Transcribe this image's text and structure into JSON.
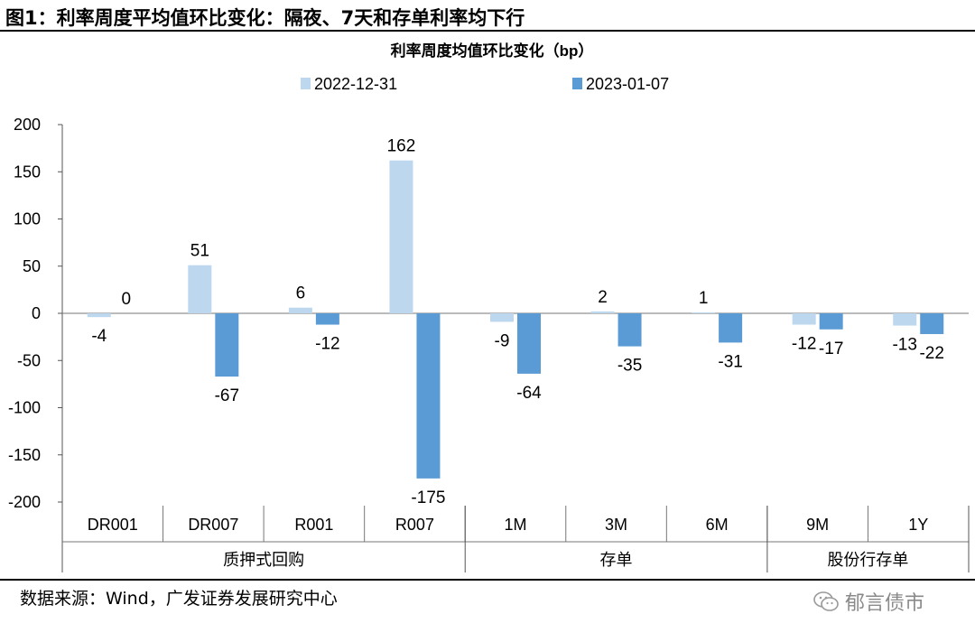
{
  "figure": {
    "title": "图1：利率周度平均值环比变化：隔夜、7天和存单利率均下行",
    "source": "数据来源：Wind，广发证券发展研究中心",
    "watermark": "郁言债市"
  },
  "colors": {
    "light": "#bdd7ee",
    "dark": "#5b9bd5"
  },
  "chart_data": {
    "type": "bar",
    "title": "利率周度均值环比变化（bp）",
    "categories": [
      "DR001",
      "DR007",
      "R001",
      "R007",
      "1M",
      "3M",
      "6M",
      "9M",
      "1Y"
    ],
    "groups": [
      {
        "label": "质押式回购",
        "categories": [
          "DR001",
          "DR007",
          "R001",
          "R007"
        ]
      },
      {
        "label": "存单",
        "categories": [
          "1M",
          "3M",
          "6M"
        ]
      },
      {
        "label": "股份行存单",
        "categories": [
          "9M",
          "1Y"
        ]
      }
    ],
    "series": [
      {
        "name": "2022-12-31",
        "values": [
          -4,
          51,
          6,
          162,
          -9,
          2,
          1,
          -12,
          -13
        ]
      },
      {
        "name": "2023-01-07",
        "values": [
          0,
          -67,
          -12,
          -175,
          -64,
          -35,
          -31,
          -17,
          -22
        ]
      }
    ],
    "ylim": [
      -200,
      200
    ],
    "yticks": [
      -200,
      -150,
      -100,
      -50,
      0,
      50,
      100,
      150,
      200
    ],
    "legend": "top",
    "grid": false
  }
}
